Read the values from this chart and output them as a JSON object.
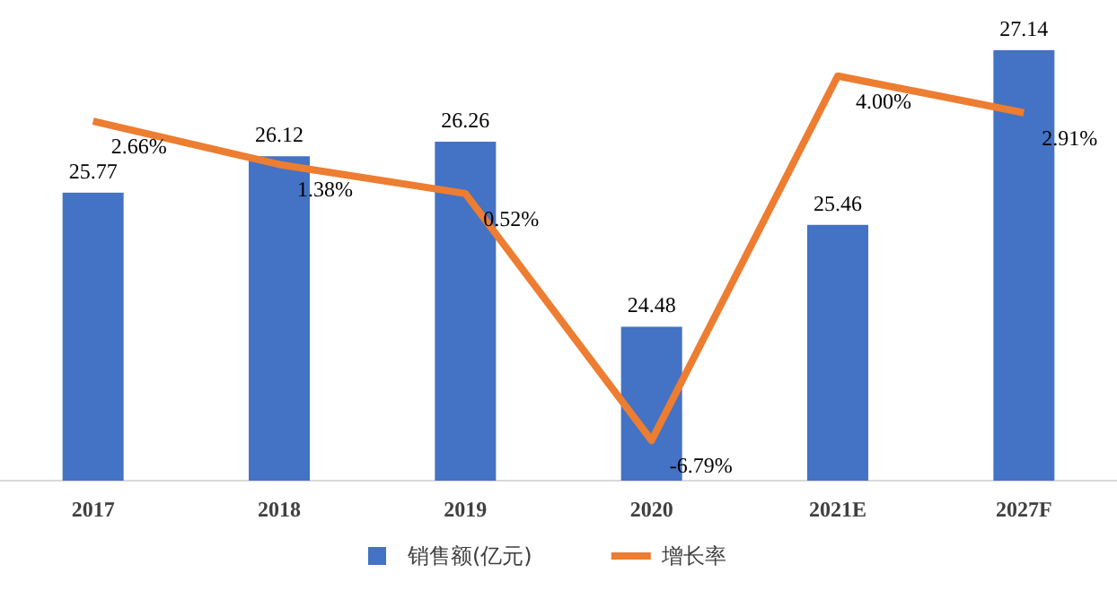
{
  "chart_data": {
    "type": "bar",
    "categories": [
      "2017",
      "2018",
      "2019",
      "2020",
      "2021E",
      "2027F"
    ],
    "series": [
      {
        "name": "销售额(亿元)",
        "color": "#4472c4",
        "values": [
          25.77,
          26.12,
          26.26,
          24.48,
          25.46,
          27.14
        ]
      },
      {
        "name": "增长率",
        "type": "line",
        "axis": "y2",
        "color": "#ed7d31",
        "values": [
          2.66,
          1.38,
          0.52,
          -6.79,
          4.0,
          2.91
        ],
        "value_labels": [
          "2.66%",
          "1.38%",
          "0.52%",
          "-6.79%",
          "4.00%",
          "2.91%"
        ]
      }
    ],
    "ylim": [
      23,
      27.14
    ],
    "data_labels": true,
    "legend": "bottom",
    "marker": "none",
    "tick_labels": "x"
  }
}
